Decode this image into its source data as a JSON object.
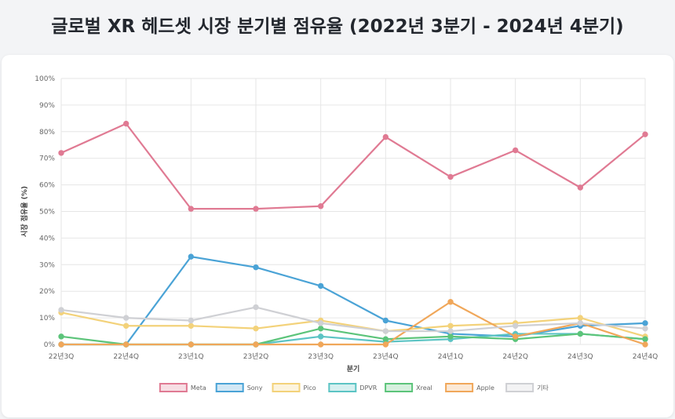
{
  "page": {
    "title": "글로벌 XR 헤드셋 시장 분기별 점유율 (2022년 3분기 - 2024년 4분기)"
  },
  "chart_data": {
    "type": "line",
    "title": "글로벌 XR 헤드셋 시장 분기별 점유율 (2022년 3분기 - 2024년 4분기)",
    "xlabel": "분기",
    "ylabel": "시장 점유율 (%)",
    "ylim": [
      0,
      100
    ],
    "y_tick_labels": [
      "0%",
      "10%",
      "20%",
      "30%",
      "40%",
      "50%",
      "60%",
      "70%",
      "80%",
      "90%",
      "100%"
    ],
    "grid": true,
    "legend_position": "bottom",
    "categories": [
      "22년3Q",
      "22년4Q",
      "23년1Q",
      "23년2Q",
      "23년3Q",
      "23년4Q",
      "24년1Q",
      "24년2Q",
      "24년3Q",
      "24년4Q"
    ],
    "series": [
      {
        "name": "Meta",
        "color": "#e07a93",
        "values": [
          72,
          83,
          51,
          51,
          52,
          78,
          63,
          73,
          59,
          79
        ]
      },
      {
        "name": "Sony",
        "color": "#4aa3d6",
        "values": [
          0,
          0,
          33,
          29,
          22,
          9,
          4,
          3,
          7,
          8
        ]
      },
      {
        "name": "Pico",
        "color": "#f3d27a",
        "values": [
          12,
          7,
          7,
          6,
          9,
          5,
          7,
          8,
          10,
          3
        ]
      },
      {
        "name": "DPVR",
        "color": "#5cc4c4",
        "values": [
          0,
          0,
          0,
          0,
          3,
          1,
          2,
          4,
          4,
          2
        ]
      },
      {
        "name": "Xreal",
        "color": "#5cc47a",
        "values": [
          3,
          0,
          0,
          0,
          6,
          2,
          3,
          2,
          4,
          2
        ]
      },
      {
        "name": "Apple",
        "color": "#f0a75a",
        "values": [
          0,
          0,
          0,
          0,
          0,
          0,
          16,
          3,
          8,
          0
        ]
      },
      {
        "name": "기타",
        "color": "#cfd0d4",
        "values": [
          13,
          10,
          9,
          14,
          8,
          5,
          5,
          7,
          8,
          6
        ]
      }
    ]
  }
}
